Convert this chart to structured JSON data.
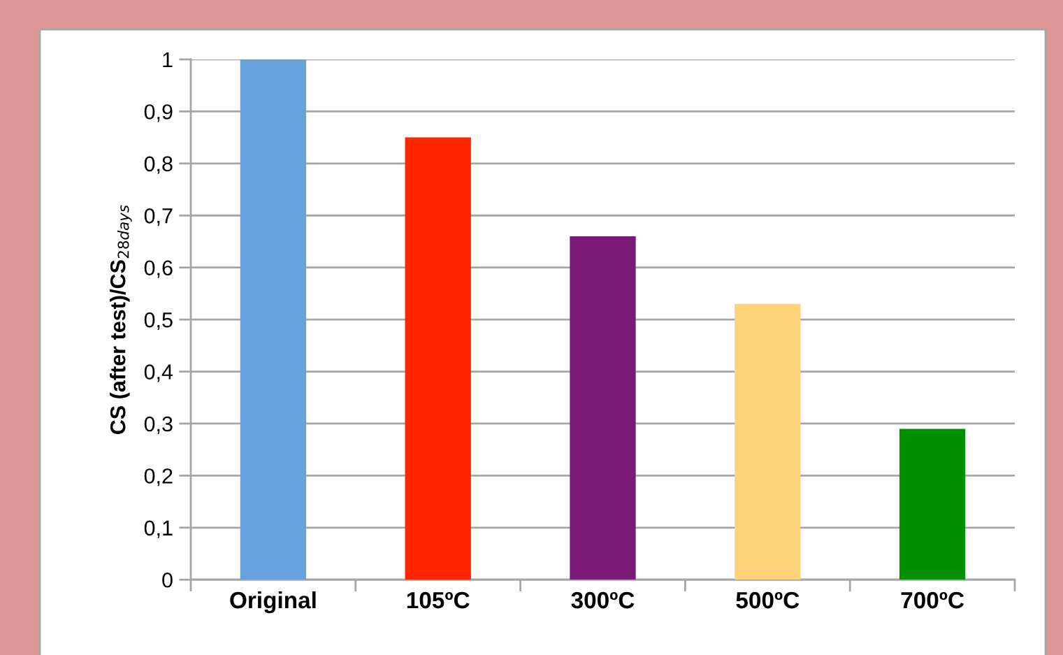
{
  "chart_data": {
    "type": "bar",
    "ylabel": "CS (after test)/CS$_{28days}$",
    "categories": [
      "Original",
      "105ºC",
      "300ºC",
      "500ºC",
      "700ºC"
    ],
    "values": [
      1,
      0.85,
      0.66,
      0.53,
      0.29
    ],
    "colors": [
      "#66a3de",
      "#ff2600",
      "#7b1a77",
      "#fed37a",
      "#008f00"
    ],
    "ylim": [
      0,
      1
    ],
    "yticks": [
      0,
      {
        "value": 0.1,
        "label": "0,1"
      },
      {
        "value": 0.2,
        "label": "0,2"
      },
      {
        "value": 0.3,
        "label": "0,3"
      },
      {
        "value": 0.4,
        "label": "0,4"
      },
      {
        "value": 0.5,
        "label": "0,5"
      },
      {
        "value": 0.6,
        "label": "0,6"
      },
      {
        "value": 0.7,
        "label": "0,7"
      },
      {
        "value": 0.8,
        "label": "0,8"
      },
      {
        "value": 0.9,
        "label": "0,9"
      },
      1
    ],
    "grid": "y",
    "legend": false
  }
}
